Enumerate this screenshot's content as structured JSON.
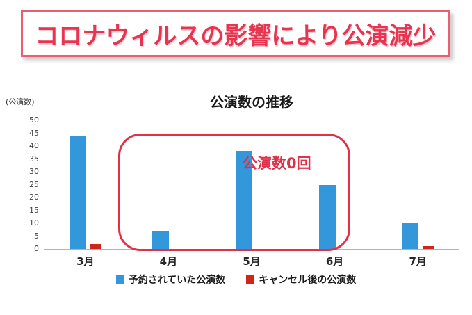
{
  "banner": {
    "text": "コロナウィルスの影響により公演減少",
    "text_color": "#e8344e",
    "border_color": "#ec5d72"
  },
  "annotation": {
    "text": "公演数0回",
    "color": "#e0304a"
  },
  "chart_data": {
    "type": "bar",
    "title": "公演数の推移",
    "unit_label": "(公演数)",
    "categories": [
      "3月",
      "4月",
      "5月",
      "6月",
      "7月"
    ],
    "series": [
      {
        "name": "予約されていた公演数",
        "color": "#3398db",
        "values": [
          44,
          7,
          38,
          25,
          10
        ]
      },
      {
        "name": "キャンセル後の公演数",
        "color": "#d1251c",
        "values": [
          2,
          0,
          0,
          0,
          1
        ]
      }
    ],
    "ylim": [
      0,
      50
    ],
    "yticks": [
      0,
      5,
      10,
      15,
      20,
      25,
      30,
      35,
      40,
      45,
      50
    ],
    "grid": false,
    "legend_position": "bottom"
  }
}
